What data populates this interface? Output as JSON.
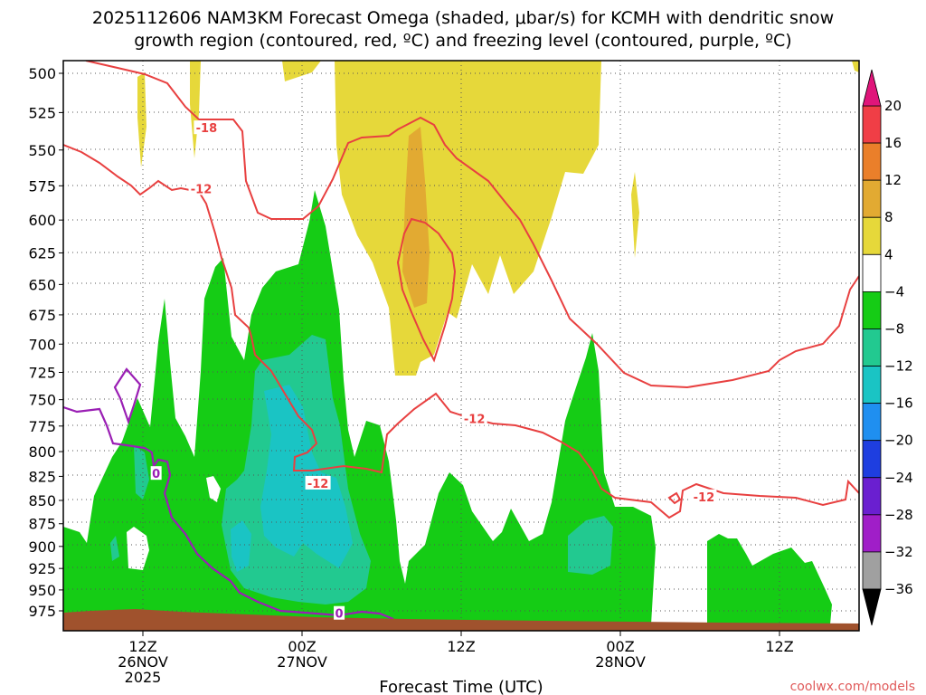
{
  "chart_data": {
    "type": "heatmap",
    "title_lines": [
      "2025112606 NAM3KM Forecast Omega (shaded, μbar/s) for KCMH with dendritic snow",
      "growth region (contoured, red, ºC) and freezing level (contoured, purple, ºC)"
    ],
    "xlabel": "Forecast Time (UTC)",
    "credit": "coolwx.com/models",
    "x_ticks": [
      {
        "hour": 6,
        "lines": [
          "12Z",
          "26NOV",
          "2025"
        ]
      },
      {
        "hour": 18,
        "lines": [
          "00Z",
          "27NOV"
        ]
      },
      {
        "hour": 30,
        "lines": [
          "12Z"
        ]
      },
      {
        "hour": 42,
        "lines": [
          "00Z",
          "28NOV"
        ]
      },
      {
        "hour": 54,
        "lines": [
          "12Z"
        ]
      }
    ],
    "x_range_hours": [
      0,
      60
    ],
    "pressure_levels": [
      "500",
      "525",
      "550",
      "575",
      "600",
      "625",
      "650",
      "675",
      "700",
      "725",
      "750",
      "775",
      "800",
      "825",
      "850",
      "875",
      "900",
      "925",
      "950",
      "975"
    ],
    "colorbar": {
      "labels": [
        "20",
        "16",
        "12",
        "8",
        "4",
        "−4",
        "−8",
        "−12",
        "−16",
        "−20",
        "−24",
        "−28",
        "−32",
        "−36"
      ],
      "bands": [
        {
          "lo": 16,
          "hi": 20,
          "color": "#f03e46"
        },
        {
          "lo": 12,
          "hi": 16,
          "color": "#ea7f2a"
        },
        {
          "lo": 8,
          "hi": 12,
          "color": "#e2aa32"
        },
        {
          "lo": 4,
          "hi": 8,
          "color": "#e6d83a"
        },
        {
          "lo": -4,
          "hi": 4,
          "color": "#ffffff"
        },
        {
          "lo": -8,
          "hi": -4,
          "color": "#15cc15"
        },
        {
          "lo": -12,
          "hi": -8,
          "color": "#22c990"
        },
        {
          "lo": -16,
          "hi": -12,
          "color": "#1ac4c4"
        },
        {
          "lo": -20,
          "hi": -16,
          "color": "#1f8ff0"
        },
        {
          "lo": -24,
          "hi": -20,
          "color": "#1e3ee0"
        },
        {
          "lo": -28,
          "hi": -24,
          "color": "#6a1fd0"
        },
        {
          "lo": -32,
          "hi": -28,
          "color": "#a01ec8"
        },
        {
          "lo": -36,
          "hi": -32,
          "color": "#a0a0a0"
        }
      ],
      "top_arrow_color": "#e0157a",
      "bottom_arrow_color": "#000000"
    },
    "contour_labels": [
      {
        "text": "-18",
        "color": "#e84040",
        "hour": 10.8,
        "p": 535
      },
      {
        "text": "-12",
        "color": "#e84040",
        "hour": 10.4,
        "p": 577
      },
      {
        "text": "-12",
        "color": "#e84040",
        "hour": 31.0,
        "p": 768
      },
      {
        "text": "-12",
        "color": "#e84040",
        "hour": 19.2,
        "p": 832
      },
      {
        "text": "-12",
        "color": "#e84040",
        "hour": 48.3,
        "p": 846
      },
      {
        "text": "0",
        "color": "#9a1fb4",
        "hour": 7.0,
        "p": 822
      },
      {
        "text": "0",
        "color": "#9a1fb4",
        "hour": 20.8,
        "p": 978
      }
    ],
    "ground_color": "#a0522d",
    "grid": "dotted"
  }
}
